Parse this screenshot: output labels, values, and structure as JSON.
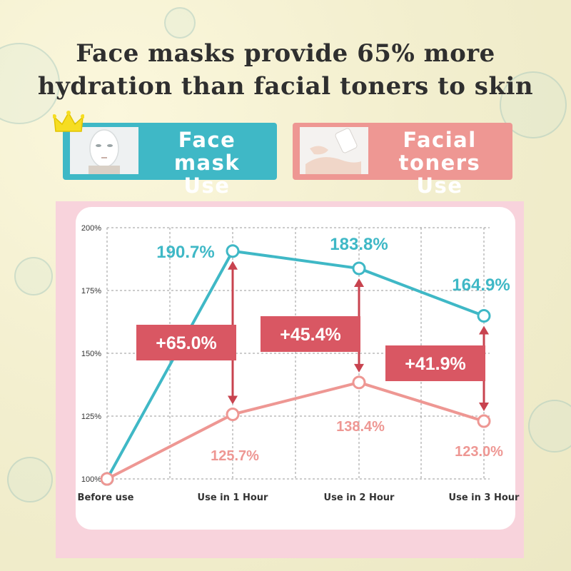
{
  "title_lines": [
    "Face masks provide 65% more",
    "hydration than facial toners to skin"
  ],
  "legend": {
    "mask_label": [
      "Face mask",
      "Use"
    ],
    "toner_label": [
      "Facial toners",
      "Use"
    ]
  },
  "colors": {
    "mask": "#3fb8c6",
    "toner": "#ee9793",
    "diff": "#d95763",
    "arrow": "#c8434f"
  },
  "icons": {
    "crown": "crown-icon"
  },
  "chart_data": {
    "type": "line",
    "categories": [
      "Before use",
      "Use in 1 Hour",
      "Use in 2 Hour",
      "Use in 3 Hour"
    ],
    "ylim": [
      100,
      200
    ],
    "y_ticks": [
      100,
      125,
      150,
      175,
      200
    ],
    "y_tick_labels": [
      "100%",
      "125%",
      "150%",
      "175%",
      "200%"
    ],
    "grid": true,
    "series": [
      {
        "name": "Face mask Use",
        "values": [
          100,
          190.7,
          183.8,
          164.9
        ],
        "labels": [
          "",
          "190.7%",
          "183.8%",
          "164.9%"
        ]
      },
      {
        "name": "Facial toners Use",
        "values": [
          100,
          125.7,
          138.4,
          123.0
        ],
        "labels": [
          "",
          "125.7%",
          "138.4%",
          "123.0%"
        ]
      }
    ],
    "differences": [
      {
        "category": "Use in 1 Hour",
        "label": "+65.0%"
      },
      {
        "category": "Use in 2 Hour",
        "label": "+45.4%"
      },
      {
        "category": "Use in 3 Hour",
        "label": "+41.9%"
      }
    ]
  }
}
